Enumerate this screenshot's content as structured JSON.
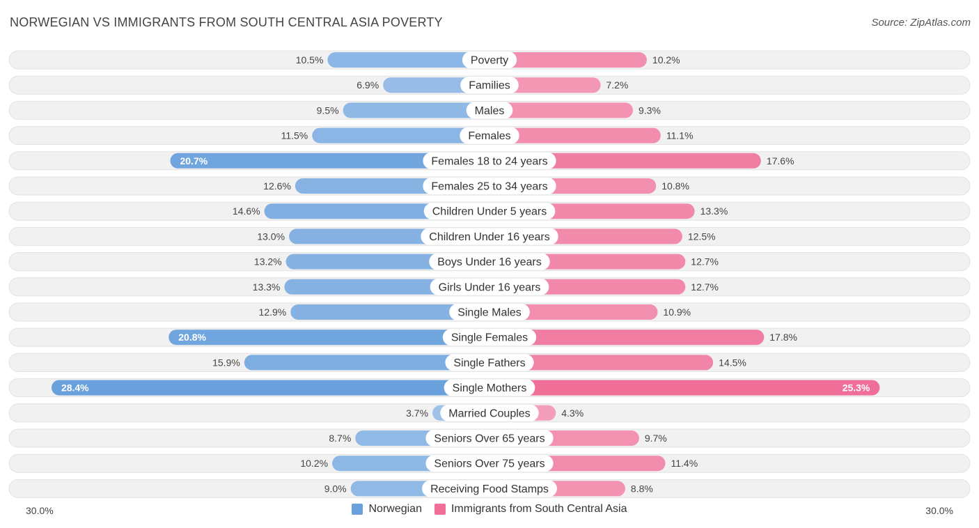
{
  "header": {
    "title": "NORWEGIAN VS IMMIGRANTS FROM SOUTH CENTRAL ASIA POVERTY",
    "source": "Source: ZipAtlas.com"
  },
  "colors": {
    "left_light": "#a9c8ec",
    "left_strong": "#6aa1dc",
    "right_light": "#f5a9c2",
    "right_strong": "#ef6f98"
  },
  "chart_data": {
    "type": "bar",
    "orientation": "horizontal-diverging",
    "title": "NORWEGIAN VS IMMIGRANTS FROM SOUTH CENTRAL ASIA POVERTY",
    "xlim": [
      -30,
      30
    ],
    "axis_min_label": "30.0%",
    "axis_max_label": "30.0%",
    "categories": [
      "Poverty",
      "Families",
      "Males",
      "Females",
      "Females 18 to 24 years",
      "Females 25 to 34 years",
      "Children Under 5 years",
      "Children Under 16 years",
      "Boys Under 16 years",
      "Girls Under 16 years",
      "Single Males",
      "Single Females",
      "Single Fathers",
      "Single Mothers",
      "Married Couples",
      "Seniors Over 65 years",
      "Seniors Over 75 years",
      "Receiving Food Stamps"
    ],
    "series": [
      {
        "name": "Norwegian",
        "values": [
          10.5,
          6.9,
          9.5,
          11.5,
          20.7,
          12.6,
          14.6,
          13.0,
          13.2,
          13.3,
          12.9,
          20.8,
          15.9,
          28.4,
          3.7,
          8.7,
          10.2,
          9.0
        ],
        "labels": [
          "10.5%",
          "6.9%",
          "9.5%",
          "11.5%",
          "20.7%",
          "12.6%",
          "14.6%",
          "13.0%",
          "13.2%",
          "13.3%",
          "12.9%",
          "20.8%",
          "15.9%",
          "28.4%",
          "3.7%",
          "8.7%",
          "10.2%",
          "9.0%"
        ]
      },
      {
        "name": "Immigrants from South Central Asia",
        "values": [
          10.2,
          7.2,
          9.3,
          11.1,
          17.6,
          10.8,
          13.3,
          12.5,
          12.7,
          12.7,
          10.9,
          17.8,
          14.5,
          25.3,
          4.3,
          9.7,
          11.4,
          8.8
        ],
        "labels": [
          "10.2%",
          "7.2%",
          "9.3%",
          "11.1%",
          "17.6%",
          "10.8%",
          "13.3%",
          "12.5%",
          "12.7%",
          "12.7%",
          "10.9%",
          "17.8%",
          "14.5%",
          "25.3%",
          "4.3%",
          "9.7%",
          "11.4%",
          "8.8%"
        ]
      }
    ],
    "legend": [
      "Norwegian",
      "Immigrants from South Central Asia"
    ]
  }
}
